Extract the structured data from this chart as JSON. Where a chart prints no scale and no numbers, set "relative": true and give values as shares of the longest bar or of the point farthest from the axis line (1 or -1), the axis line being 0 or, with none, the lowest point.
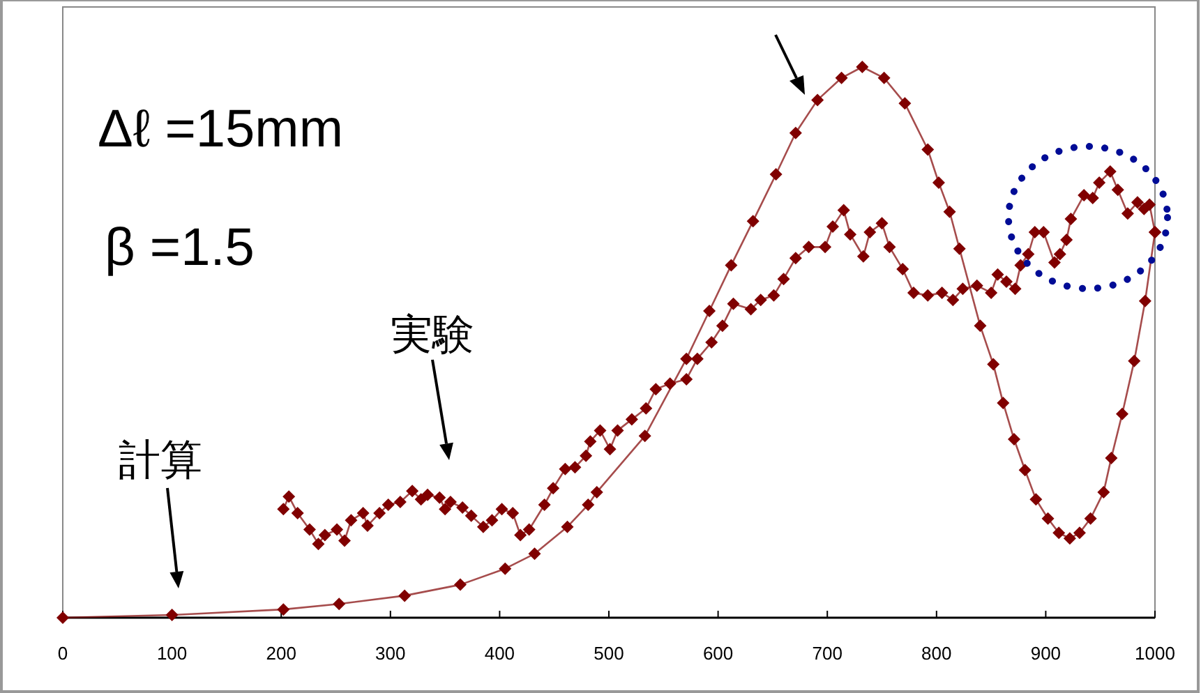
{
  "chart_data": {
    "type": "line",
    "relative": true,
    "xlim": [
      0,
      1000
    ],
    "xticks": [
      0,
      100,
      200,
      300,
      400,
      500,
      600,
      700,
      800,
      900,
      1000
    ],
    "marker": "diamond",
    "line_style": "solid",
    "grid": false,
    "annotations": [
      "Δℓ =15mm",
      "β =1.5",
      "実験",
      "計算"
    ],
    "series": [
      {
        "color": "#800000",
        "x": [
          0,
          100,
          202,
          253,
          313,
          364,
          405,
          432,
          462,
          481,
          489,
          533,
          571,
          592,
          612,
          632,
          653,
          671,
          691,
          713,
          732,
          752,
          771,
          792,
          802,
          812,
          821,
          840,
          852,
          861,
          871,
          881,
          891,
          902,
          912,
          922,
          931,
          941,
          953,
          960,
          970,
          981,
          991,
          1000
        ],
        "values": [
          0,
          0.005,
          0.015,
          0.025,
          0.04,
          0.06,
          0.089,
          0.116,
          0.165,
          0.205,
          0.228,
          0.33,
          0.47,
          0.557,
          0.64,
          0.72,
          0.805,
          0.88,
          0.94,
          0.98,
          1.0,
          0.98,
          0.934,
          0.85,
          0.79,
          0.737,
          0.67,
          0.53,
          0.46,
          0.39,
          0.324,
          0.268,
          0.215,
          0.18,
          0.154,
          0.144,
          0.154,
          0.18,
          0.228,
          0.29,
          0.37,
          0.466,
          0.575,
          0.7
        ]
      },
      {
        "color": "#800000",
        "x": [
          202,
          207,
          215,
          226,
          234,
          240,
          251,
          258,
          264,
          275,
          279,
          290,
          298,
          309,
          320,
          328,
          334,
          345,
          350,
          355,
          366,
          374,
          385,
          393,
          402,
          412,
          419,
          427,
          441,
          449,
          460,
          469,
          479,
          483,
          492,
          501,
          508,
          521,
          534,
          543,
          556,
          571,
          581,
          594,
          604,
          614,
          630,
          639,
          651,
          660,
          671,
          683,
          698,
          705,
          715,
          721,
          733,
          739,
          750,
          757,
          769,
          779,
          792,
          805,
          815,
          824,
          837,
          850,
          856,
          864,
          872,
          877,
          884,
          890,
          898,
          908,
          913,
          919,
          923,
          935,
          943,
          949,
          959,
          966,
          975,
          984,
          990,
          995,
          1000
        ],
        "values": [
          0.197,
          0.22,
          0.19,
          0.16,
          0.134,
          0.15,
          0.16,
          0.14,
          0.177,
          0.19,
          0.167,
          0.19,
          0.205,
          0.21,
          0.23,
          0.215,
          0.223,
          0.218,
          0.197,
          0.21,
          0.2,
          0.185,
          0.165,
          0.177,
          0.197,
          0.19,
          0.15,
          0.16,
          0.205,
          0.235,
          0.27,
          0.273,
          0.294,
          0.32,
          0.34,
          0.306,
          0.34,
          0.36,
          0.38,
          0.415,
          0.425,
          0.433,
          0.47,
          0.5,
          0.53,
          0.57,
          0.56,
          0.577,
          0.585,
          0.615,
          0.653,
          0.673,
          0.673,
          0.71,
          0.74,
          0.696,
          0.656,
          0.7,
          0.716,
          0.673,
          0.633,
          0.59,
          0.585,
          0.59,
          0.577,
          0.597,
          0.603,
          0.59,
          0.623,
          0.61,
          0.597,
          0.64,
          0.66,
          0.7,
          0.7,
          0.645,
          0.66,
          0.686,
          0.724,
          0.767,
          0.762,
          0.79,
          0.81,
          0.777,
          0.734,
          0.754,
          0.742,
          0.75,
          0.7
        ]
      }
    ]
  }
}
